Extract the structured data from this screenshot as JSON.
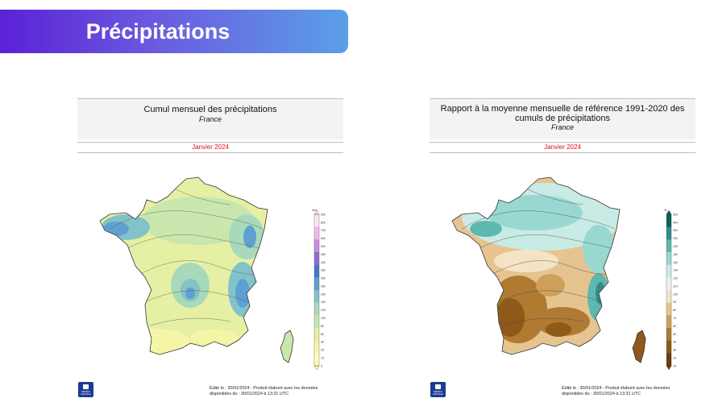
{
  "banner": {
    "title": "Précipitations"
  },
  "panels": [
    {
      "title": "Cumul mensuel des précipitations",
      "subtitle": "France",
      "date": "Janvier 2024",
      "legend_unit": "mm",
      "legend_values": [
        "900",
        "800",
        "700",
        "600",
        "500",
        "450",
        "400",
        "350",
        "300",
        "250",
        "200",
        "150",
        "120",
        "100",
        "80",
        "60",
        "40",
        "25",
        "15",
        "5"
      ],
      "logo_text": "MÉTÉO FRANCE",
      "footer_line1": "Édité le : 30/01/2024 - Produit élaboré avec les données",
      "footer_line2": "disponibles du : 30/01/2024 à 13:31 UTC",
      "colors": [
        "#fdfdb4",
        "#f5f5a8",
        "#e4f0a6",
        "#c9e7ad",
        "#a8d9bb",
        "#82c3c8",
        "#5fa0d2",
        "#4678c8",
        "#8c6ed0",
        "#c88ee0",
        "#f0b6ee",
        "#fde3f6"
      ]
    },
    {
      "title": "Rapport à la moyenne mensuelle de référence 1991-2020 des cumuls de précipitations",
      "subtitle": "France",
      "date": "Janvier 2024",
      "legend_unit": "%",
      "legend_values": [
        "500",
        "400",
        "300",
        "250",
        "200",
        "180",
        "160",
        "140",
        "120",
        "110",
        "100",
        "90",
        "80",
        "70",
        "60",
        "50",
        "40",
        "30",
        "20",
        "10"
      ],
      "logo_text": "MÉTÉO FRANCE",
      "footer_line1": "Édité le : 30/01/2024 - Produit élaboré avec les données",
      "footer_line2": "disponibles du : 30/01/2024 à 13:31 UTC",
      "colors": [
        "#6e3f0c",
        "#8f5a19",
        "#b07a32",
        "#cfa05a",
        "#e6c48f",
        "#f4e4c4",
        "#eaf4ec",
        "#c9ebe6",
        "#99d8d1",
        "#5fb8b0",
        "#2f8f88",
        "#0f5f59"
      ]
    }
  ]
}
